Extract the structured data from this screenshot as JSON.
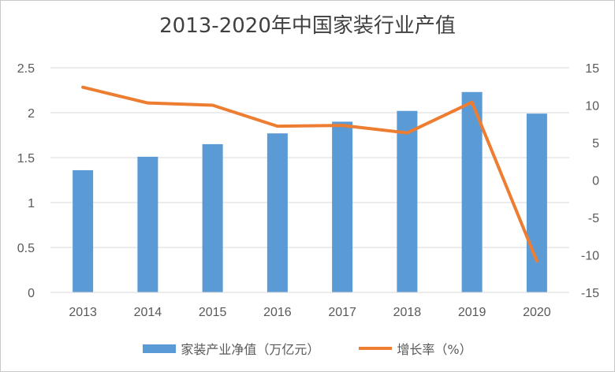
{
  "chart_data": {
    "type": "bar",
    "title": "2013-2020年中国家装行业产值",
    "categories": [
      "2013",
      "2014",
      "2015",
      "2016",
      "2017",
      "2018",
      "2019",
      "2020"
    ],
    "series": [
      {
        "name": "家装产业净值（万亿元）",
        "type": "bar",
        "axis": "left",
        "color": "#5b9bd5",
        "values": [
          1.36,
          1.51,
          1.65,
          1.77,
          1.9,
          2.02,
          2.23,
          1.99
        ]
      },
      {
        "name": "增长率（%）",
        "type": "line",
        "axis": "right",
        "color": "#ed7d31",
        "values": [
          12.4,
          10.3,
          10.0,
          7.2,
          7.3,
          6.3,
          10.4,
          -10.8
        ]
      }
    ],
    "ylim_left": [
      0,
      2.5
    ],
    "yticks_left": [
      "0",
      "0.5",
      "1",
      "1.5",
      "2",
      "2.5"
    ],
    "ylim_right": [
      -15,
      15
    ],
    "yticks_right": [
      "-15",
      "-10",
      "-5",
      "0",
      "5",
      "10",
      "15"
    ],
    "grid": true,
    "legend_position": "bottom"
  }
}
